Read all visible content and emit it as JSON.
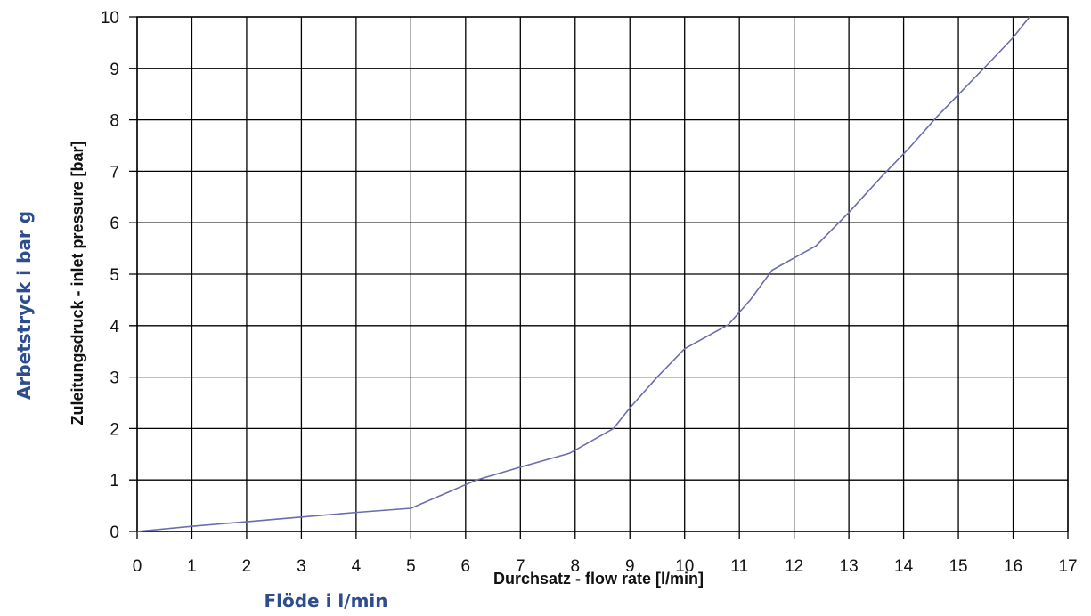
{
  "chart_data": {
    "type": "line",
    "xlabel": "Durchsatz - flow rate [l/min]",
    "ylabel": "Zuleitungsdruck - inlet pressure [bar]",
    "xlabel_alt": "Flöde i l/min",
    "ylabel_alt": "Arbetstryck i bar g",
    "xlim": [
      0,
      17
    ],
    "ylim": [
      0,
      10
    ],
    "xticks": [
      "0",
      "1",
      "2",
      "3",
      "4",
      "5",
      "6",
      "7",
      "8",
      "9",
      "10",
      "11",
      "12",
      "13",
      "14",
      "15",
      "16",
      "17"
    ],
    "yticks": [
      "0",
      "1",
      "2",
      "3",
      "4",
      "5",
      "6",
      "7",
      "8",
      "9",
      "10"
    ],
    "grid": true,
    "line_color": "#6b6bb0",
    "alt_label_color": "#2e4d8f",
    "series": [
      {
        "x": [
          0,
          1,
          2,
          3,
          4,
          5,
          6.2,
          7,
          7.9,
          8.7,
          9,
          9.5,
          10,
          10.8,
          11.2,
          11.6,
          12.4,
          13,
          13.6,
          14.1,
          14.6,
          15.1,
          15.6,
          16,
          16.3
        ],
        "y": [
          0,
          0.1,
          0.19,
          0.28,
          0.37,
          0.45,
          1.0,
          1.25,
          1.52,
          2.0,
          2.4,
          3.0,
          3.55,
          4.02,
          4.5,
          5.08,
          5.55,
          6.2,
          6.9,
          7.45,
          8.05,
          8.6,
          9.15,
          9.6,
          10.0
        ]
      }
    ]
  }
}
